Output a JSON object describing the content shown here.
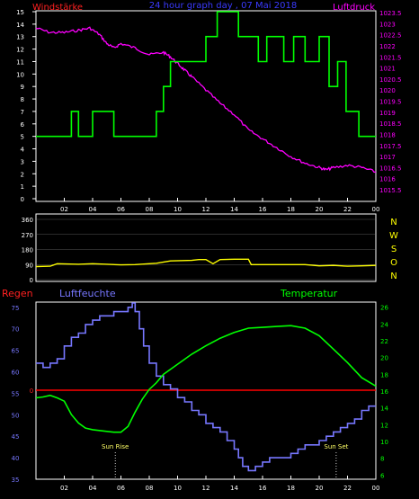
{
  "colors": {
    "background": "#000000",
    "frame": "#ffffff",
    "wind_label": "#ff2020",
    "title": "#3a3aff",
    "pressure": "#ff00ff",
    "wind": "#00ff00",
    "direction_line": "#ffff00",
    "compass": "#ffff00",
    "rain": "#ff2020",
    "humidity": "#7777ff",
    "temperature": "#00ff00",
    "zero_line": "#ff0000",
    "sun_text": "#ffff66"
  },
  "x_ticks": [
    "02",
    "04",
    "06",
    "08",
    "10",
    "12",
    "14",
    "16",
    "18",
    "20",
    "22",
    "00"
  ],
  "chart_data": [
    {
      "type": "line",
      "title": "24 hour graph day , 07 Mai 2018",
      "x_ticks_hours": [
        2,
        4,
        6,
        8,
        10,
        12,
        14,
        16,
        18,
        20,
        22,
        24
      ],
      "left_axis": {
        "label": "Windstärke",
        "ticks": [
          0,
          1,
          2,
          3,
          4,
          5,
          6,
          7,
          8,
          9,
          10,
          11,
          12,
          13,
          14,
          15
        ],
        "ylim": [
          0,
          15
        ]
      },
      "right_axis": {
        "label": "Luftdruck",
        "ylim": [
          1015.5,
          1023.5
        ],
        "ticks": [
          "1015.5",
          "1016",
          "1016.5",
          "1017",
          "1017.5",
          "1018",
          "1018.5",
          "1019",
          "1019.5",
          "1020",
          "1020.5",
          "1021",
          "1021.5",
          "1022",
          "1022.5",
          "1023",
          "1023.5"
        ]
      },
      "series": [
        {
          "axis": "right",
          "step": false,
          "x": [
            0.0,
            1.0,
            2.0,
            3.0,
            3.8,
            4.5,
            5.0,
            5.5,
            6.0,
            7.0,
            8.0,
            9.0,
            9.5,
            10.0,
            10.5,
            11.0,
            12.0,
            13.0,
            14.0,
            15.0,
            16.0,
            17.0,
            18.0,
            19.0,
            20.0,
            20.5,
            21.0,
            22.0,
            23.0,
            24.0
          ],
          "y": [
            1022.8,
            1022.6,
            1022.6,
            1022.7,
            1022.8,
            1022.5,
            1022.1,
            1021.9,
            1022.1,
            1021.9,
            1021.6,
            1021.7,
            1021.5,
            1021.2,
            1020.9,
            1020.6,
            1020.0,
            1019.4,
            1018.9,
            1018.2,
            1017.8,
            1017.4,
            1017.0,
            1016.7,
            1016.5,
            1016.4,
            1016.5,
            1016.6,
            1016.5,
            1016.3
          ]
        },
        {
          "axis": "left",
          "step": true,
          "x": [
            0.0,
            2.5,
            3.0,
            4.0,
            5.5,
            7.5,
            8.5,
            9.0,
            9.5,
            10.5,
            12.0,
            12.8,
            14.3,
            15.7,
            16.3,
            17.5,
            18.2,
            19.0,
            20.0,
            20.7,
            21.3,
            21.9,
            22.8,
            24.0
          ],
          "y": [
            5,
            7,
            5,
            7,
            5,
            5,
            7,
            9,
            11,
            11,
            13,
            15,
            13,
            11,
            13,
            11,
            13,
            11,
            13,
            9,
            11,
            7,
            5,
            5
          ]
        }
      ]
    },
    {
      "type": "line",
      "left_axis": {
        "ticks": [
          0,
          90,
          180,
          270,
          360
        ],
        "ylim": [
          0,
          360
        ]
      },
      "compass_labels": [
        "N",
        "W",
        "S",
        "O",
        "N"
      ],
      "series": [
        {
          "step": false,
          "x": [
            0.0,
            1.0,
            1.5,
            3.0,
            4.0,
            5.0,
            6.0,
            7.0,
            8.0,
            8.5,
            9.5,
            11.0,
            11.5,
            12.0,
            12.5,
            13.0,
            14.0,
            15.0,
            15.2,
            16.0,
            17.0,
            18.0,
            19.0,
            20.0,
            21.0,
            22.0,
            23.0,
            24.0
          ],
          "y": [
            78,
            80,
            95,
            92,
            95,
            92,
            88,
            90,
            95,
            98,
            112,
            115,
            120,
            120,
            95,
            120,
            122,
            122,
            90,
            90,
            90,
            90,
            90,
            82,
            85,
            80,
            82,
            85
          ]
        }
      ]
    },
    {
      "type": "line",
      "left_axis": {
        "label": "Regen",
        "ticks": [
          "0"
        ],
        "zero_line": true
      },
      "humidity_axis": {
        "label": "Luftfeuchte",
        "ylim": [
          35,
          76
        ],
        "ticks": [
          35,
          40,
          45,
          50,
          55,
          60,
          65,
          70,
          75
        ]
      },
      "right_axis": {
        "label": "Temperatur",
        "ylim": [
          5.5,
          26.5
        ],
        "ticks": [
          6,
          8,
          10,
          12,
          14,
          16,
          18,
          20,
          22,
          24,
          26
        ]
      },
      "annotations": [
        {
          "text": "Sun Rise",
          "x": 5.6
        },
        {
          "text": "Sun Set",
          "x": 21.2
        }
      ],
      "series": [
        {
          "axis": "humidity",
          "step": true,
          "x": [
            0.0,
            0.5,
            1.0,
            1.5,
            2.0,
            2.5,
            3.0,
            3.5,
            4.0,
            4.5,
            5.0,
            5.5,
            6.0,
            6.5,
            6.8,
            7.0,
            7.3,
            7.6,
            8.0,
            8.5,
            9.0,
            9.5,
            10.0,
            10.5,
            11.0,
            11.5,
            12.0,
            12.5,
            13.0,
            13.5,
            14.0,
            14.3,
            14.6,
            15.0,
            15.5,
            16.0,
            16.5,
            17.0,
            17.5,
            18.0,
            18.5,
            19.0,
            19.5,
            20.0,
            20.5,
            21.0,
            21.5,
            22.0,
            22.5,
            23.0,
            23.5,
            24.0
          ],
          "y": [
            62,
            61,
            62,
            63,
            66,
            68,
            69,
            71,
            72,
            73,
            73,
            74,
            74,
            75,
            76,
            74,
            70,
            66,
            62,
            59,
            57,
            56,
            54,
            53,
            51,
            50,
            48,
            47,
            46,
            44,
            42,
            40,
            38,
            37,
            38,
            39,
            40,
            40,
            40,
            41,
            42,
            43,
            43,
            44,
            45,
            46,
            47,
            48,
            49,
            51,
            52,
            52
          ]
        },
        {
          "axis": "right",
          "step": false,
          "x": [
            0.0,
            0.5,
            1.0,
            1.5,
            2.0,
            2.5,
            3.0,
            3.5,
            4.0,
            5.0,
            5.5,
            6.0,
            6.5,
            7.0,
            7.5,
            8.0,
            8.5,
            9.0,
            10.0,
            11.0,
            12.0,
            13.0,
            14.0,
            15.0,
            16.0,
            17.0,
            18.0,
            19.0,
            20.0,
            21.0,
            22.0,
            23.0,
            24.0
          ],
          "y": [
            15.2,
            15.3,
            15.5,
            15.2,
            14.8,
            13.2,
            12.2,
            11.6,
            11.4,
            11.2,
            11.1,
            11.1,
            11.8,
            13.5,
            15.0,
            16.2,
            17.0,
            18.0,
            19.2,
            20.4,
            21.4,
            22.3,
            23.0,
            23.5,
            23.6,
            23.7,
            23.8,
            23.5,
            22.6,
            21.0,
            19.4,
            17.6,
            16.6
          ]
        }
      ]
    }
  ]
}
